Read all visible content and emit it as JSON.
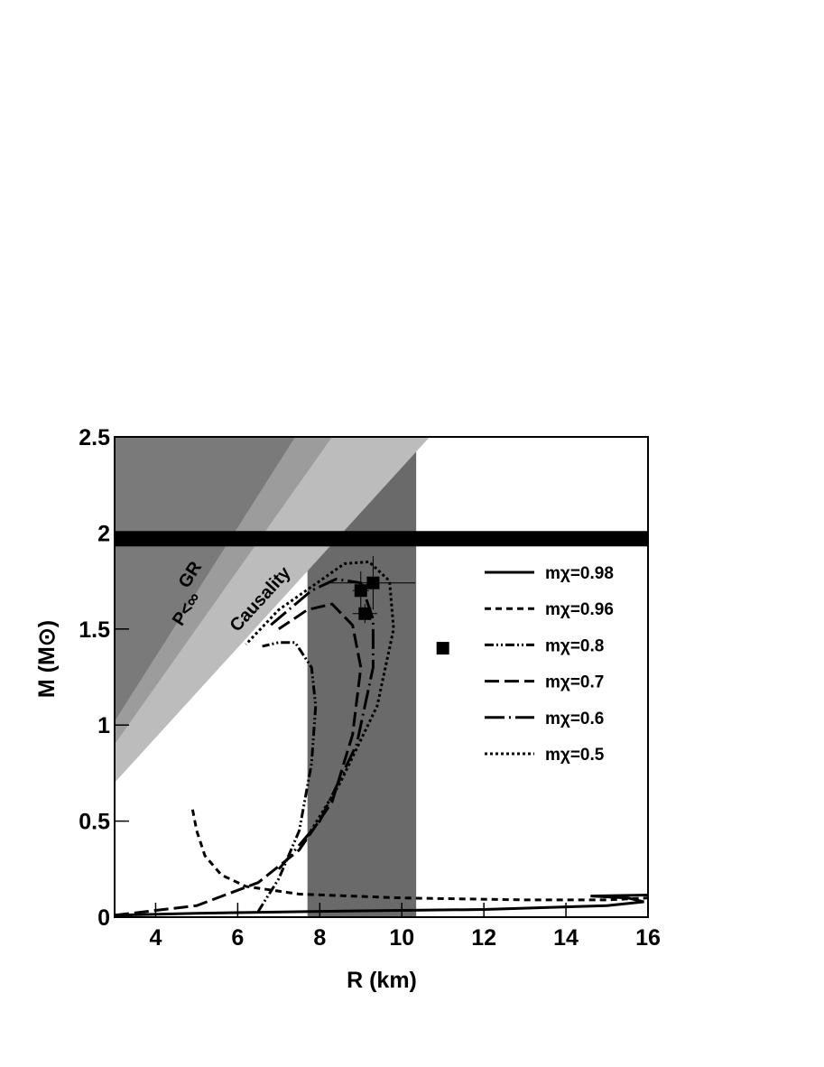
{
  "chart_data": {
    "type": "line",
    "xlabel": "R (km)",
    "ylabel": "M (M⊙)",
    "xlim": [
      3,
      16
    ],
    "ylim": [
      0,
      2.5
    ],
    "xticks": [
      4,
      6,
      8,
      10,
      12,
      14,
      16
    ],
    "yticks": [
      0,
      0.5,
      1,
      1.5,
      2,
      2.5
    ],
    "regions": [
      {
        "label": "Causality",
        "color": "#bcbcbc",
        "x": [
          3,
          10.68
        ],
        "y": [
          0.7,
          2.5
        ]
      },
      {
        "label": "P<∞",
        "color": "#9c9c9c",
        "x": [
          3,
          8.3
        ],
        "y": [
          0.9,
          2.5
        ]
      },
      {
        "label": "GR",
        "color": "#7a7a7a",
        "x": [
          3,
          7.4
        ],
        "y": [
          1.02,
          2.5
        ]
      }
    ],
    "band": {
      "color": "#6a6a6a",
      "x": [
        7.7,
        10.35
      ]
    },
    "hband": {
      "color": "#000000",
      "y": [
        1.93,
        2.01
      ]
    },
    "points": {
      "x": [
        9.0,
        9.3,
        9.1,
        11.0
      ],
      "y": [
        1.7,
        1.74,
        1.58,
        1.4
      ],
      "xerr": [
        0.2,
        1.03,
        0.3,
        null
      ],
      "yerr": [
        0.1,
        0.14,
        0.05,
        null
      ]
    },
    "series": [
      {
        "name": "mχ=0.98",
        "dash": "none",
        "x": [
          3,
          5,
          8,
          12,
          15,
          15.9,
          15.5,
          14.6,
          16
        ],
        "values": [
          0.01,
          0.02,
          0.03,
          0.04,
          0.06,
          0.08,
          0.1,
          0.11,
          0.115
        ]
      },
      {
        "name": "mχ=0.96",
        "dash": "7 5",
        "x": [
          4.9,
          5.0,
          5.2,
          5.6,
          6.2,
          7.5,
          10,
          13,
          15,
          16
        ],
        "values": [
          0.56,
          0.45,
          0.32,
          0.22,
          0.16,
          0.12,
          0.1,
          0.09,
          0.09,
          0.1
        ]
      },
      {
        "name": "mχ=0.8",
        "dash": "10 3 2 3 2 3",
        "x": [
          6.5,
          7,
          7.5,
          7.8,
          7.9,
          7.8,
          7.4,
          7.0,
          6.6
        ],
        "values": [
          0.03,
          0.2,
          0.45,
          0.8,
          1.1,
          1.3,
          1.43,
          1.43,
          1.41
        ]
      },
      {
        "name": "mχ=0.7",
        "dash": "16 6",
        "x": [
          3,
          5,
          6.5,
          7.5,
          8.3,
          8.8,
          9,
          8.8,
          8.3,
          7.7,
          7
        ],
        "values": [
          0.01,
          0.06,
          0.18,
          0.35,
          0.6,
          0.95,
          1.3,
          1.52,
          1.63,
          1.6,
          1.5
        ]
      },
      {
        "name": "mχ=0.6",
        "dash": "22 5 2 5",
        "x": [
          7,
          8,
          8.9,
          9.3,
          9.3,
          9,
          8.4,
          7.8,
          6.8
        ],
        "values": [
          0.25,
          0.5,
          0.9,
          1.3,
          1.55,
          1.74,
          1.76,
          1.7,
          1.52
        ]
      },
      {
        "name": "mχ=0.5",
        "dash": "3 3",
        "x": [
          7.5,
          8.5,
          9.4,
          9.8,
          9.7,
          9.2,
          8.6,
          7.8,
          7,
          6.2
        ],
        "values": [
          0.35,
          0.7,
          1.1,
          1.5,
          1.75,
          1.85,
          1.84,
          1.72,
          1.6,
          1.42
        ]
      }
    ]
  }
}
